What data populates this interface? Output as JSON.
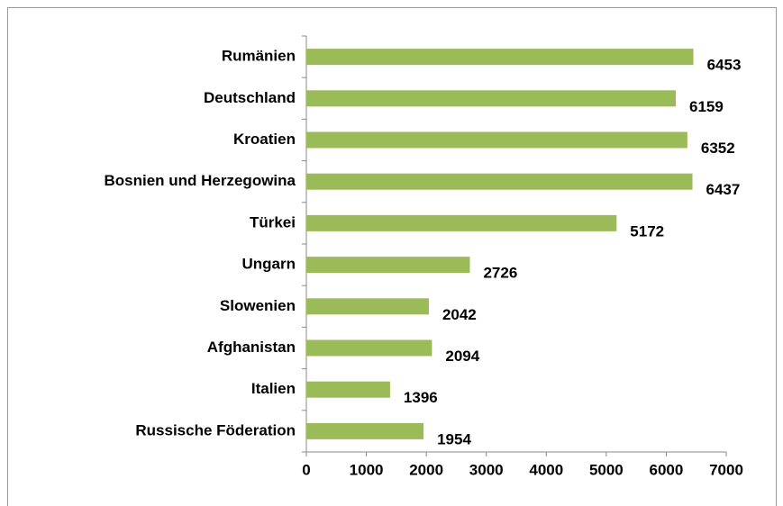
{
  "chart_data": {
    "type": "bar",
    "orientation": "horizontal",
    "categories": [
      "Rumänien",
      "Deutschland",
      "Kroatien",
      "Bosnien und Herzegowina",
      "Türkei",
      "Ungarn",
      "Slowenien",
      "Afghanistan",
      "Italien",
      "Russische Föderation"
    ],
    "values": [
      6453,
      6159,
      6352,
      6437,
      5172,
      2726,
      2042,
      2094,
      1396,
      1954
    ],
    "color": "#9bbb59",
    "xlim": [
      0,
      7000
    ],
    "xticks": [
      0,
      1000,
      2000,
      3000,
      4000,
      5000,
      6000,
      7000
    ],
    "grid": false
  }
}
